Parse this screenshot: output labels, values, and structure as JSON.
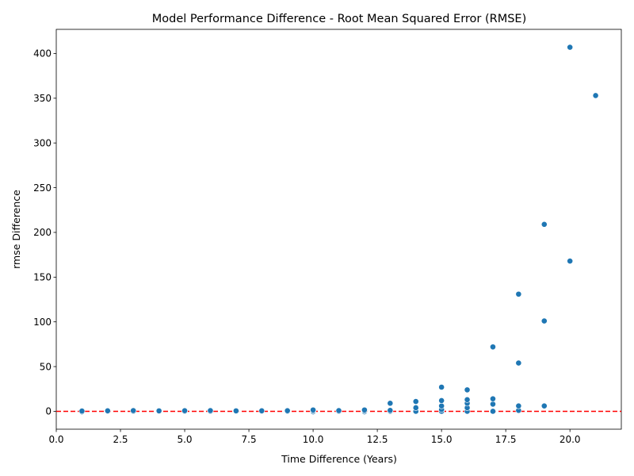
{
  "chart_data": {
    "type": "scatter",
    "title": "Model Performance Difference - Root Mean Squared Error (RMSE)",
    "xlabel": "Time Difference (Years)",
    "ylabel": "rmse Difference",
    "xlim": [
      0,
      22
    ],
    "ylim": [
      -20,
      427
    ],
    "xticks": [
      "0.0",
      "2.5",
      "5.0",
      "7.5",
      "10.0",
      "12.5",
      "15.0",
      "17.5",
      "20.0"
    ],
    "xtick_values": [
      0,
      2.5,
      5,
      7.5,
      10,
      12.5,
      15,
      17.5,
      20
    ],
    "yticks": [
      "0",
      "50",
      "100",
      "150",
      "200",
      "250",
      "300",
      "350",
      "400"
    ],
    "ytick_values": [
      0,
      50,
      100,
      150,
      200,
      250,
      300,
      350,
      400
    ],
    "grid": false,
    "reference_line": {
      "y": 0,
      "color": "#ff0000",
      "style": "dashed"
    },
    "point_color": "#1f77b4",
    "points": [
      {
        "x": 1,
        "y": -0.5
      },
      {
        "x": 1,
        "y": 0.3
      },
      {
        "x": 2,
        "y": 0
      },
      {
        "x": 2,
        "y": 0.6
      },
      {
        "x": 3,
        "y": 0
      },
      {
        "x": 3,
        "y": 0.8
      },
      {
        "x": 4,
        "y": 0
      },
      {
        "x": 4,
        "y": 0.5
      },
      {
        "x": 5,
        "y": 0
      },
      {
        "x": 5,
        "y": 0.7
      },
      {
        "x": 6,
        "y": 0
      },
      {
        "x": 6,
        "y": 0.8
      },
      {
        "x": 7,
        "y": 0
      },
      {
        "x": 7,
        "y": 0.5
      },
      {
        "x": 8,
        "y": 0
      },
      {
        "x": 8,
        "y": 0.6
      },
      {
        "x": 9,
        "y": 0
      },
      {
        "x": 9,
        "y": 0.7
      },
      {
        "x": 10,
        "y": -0.5
      },
      {
        "x": 10,
        "y": 0.5
      },
      {
        "x": 10,
        "y": 1.5
      },
      {
        "x": 11,
        "y": 0
      },
      {
        "x": 11,
        "y": 0.8
      },
      {
        "x": 12,
        "y": -0.5
      },
      {
        "x": 12,
        "y": 0.5
      },
      {
        "x": 12,
        "y": 1.5
      },
      {
        "x": 13,
        "y": 0
      },
      {
        "x": 13,
        "y": 1
      },
      {
        "x": 13,
        "y": 9
      },
      {
        "x": 14,
        "y": 0
      },
      {
        "x": 14,
        "y": 4
      },
      {
        "x": 14,
        "y": 11
      },
      {
        "x": 15,
        "y": 0
      },
      {
        "x": 15,
        "y": 2
      },
      {
        "x": 15,
        "y": 6
      },
      {
        "x": 15,
        "y": 12
      },
      {
        "x": 15,
        "y": 27
      },
      {
        "x": 16,
        "y": 0
      },
      {
        "x": 16,
        "y": 4
      },
      {
        "x": 16,
        "y": 9
      },
      {
        "x": 16,
        "y": 13
      },
      {
        "x": 16,
        "y": 24
      },
      {
        "x": 17,
        "y": 0
      },
      {
        "x": 17,
        "y": 8
      },
      {
        "x": 17,
        "y": 14
      },
      {
        "x": 17,
        "y": 72
      },
      {
        "x": 18,
        "y": 1
      },
      {
        "x": 18,
        "y": 6
      },
      {
        "x": 18,
        "y": 54
      },
      {
        "x": 18,
        "y": 131
      },
      {
        "x": 19,
        "y": 6
      },
      {
        "x": 19,
        "y": 101
      },
      {
        "x": 19,
        "y": 209
      },
      {
        "x": 20,
        "y": 168
      },
      {
        "x": 20,
        "y": 407
      },
      {
        "x": 21,
        "y": 353
      }
    ]
  }
}
